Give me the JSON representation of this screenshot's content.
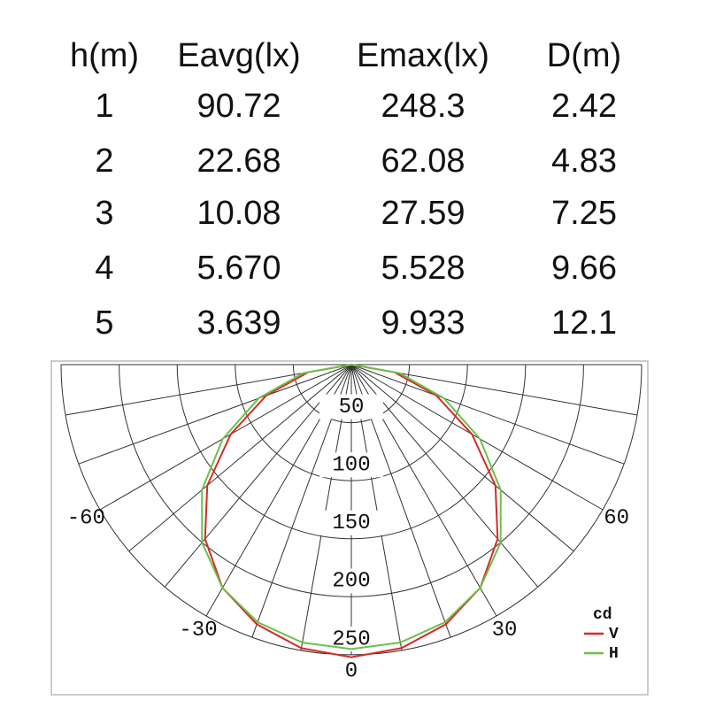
{
  "table": {
    "headers": [
      "h(m)",
      "Eavg(lx)",
      "Emax(lx)",
      "D(m)"
    ],
    "rows": [
      [
        "1",
        "90.72",
        "248.3",
        "2.42"
      ],
      [
        "2",
        "22.68",
        "62.08",
        "4.83"
      ],
      [
        "3",
        "10.08",
        "27.59",
        "7.25"
      ],
      [
        "4",
        "5.670",
        "5.528",
        "9.66"
      ],
      [
        "5",
        "3.639",
        "9.933",
        "12.1"
      ]
    ]
  },
  "chart_data": {
    "type": "polar",
    "rlim": [
      0,
      250
    ],
    "rticks": [
      50,
      100,
      150,
      200,
      250
    ],
    "angle_ticks": [
      -60,
      -30,
      0,
      30,
      60
    ],
    "legend_title": "cd",
    "series": [
      {
        "name": "V",
        "color": "#d42a2a",
        "angles": [
          -90,
          -80,
          -70,
          -60,
          -50,
          -40,
          -30,
          -20,
          -10,
          0,
          10,
          20,
          30,
          40,
          50,
          60,
          70,
          80,
          90
        ],
        "values": [
          0,
          38,
          78,
          120,
          162,
          196,
          222,
          238,
          248,
          252,
          248,
          238,
          222,
          196,
          162,
          120,
          78,
          38,
          0
        ]
      },
      {
        "name": "H",
        "color": "#6cc04a",
        "angles": [
          -90,
          -80,
          -70,
          -60,
          -50,
          -40,
          -30,
          -20,
          -10,
          0,
          10,
          20,
          30,
          40,
          50,
          60,
          70,
          80,
          90
        ],
        "values": [
          0,
          42,
          85,
          128,
          168,
          200,
          222,
          236,
          243,
          245,
          243,
          236,
          222,
          200,
          168,
          128,
          85,
          42,
          0
        ]
      }
    ]
  }
}
